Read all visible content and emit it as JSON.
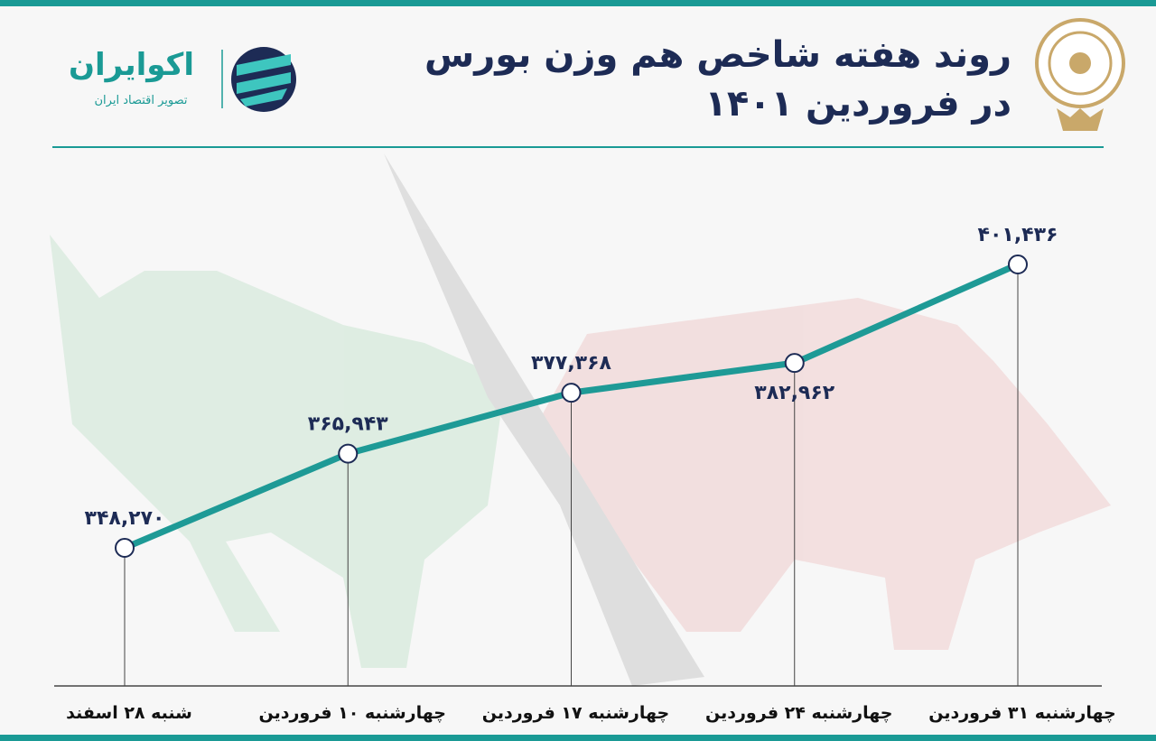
{
  "chart_data": {
    "type": "line",
    "title": "روند هفته شاخص هم وزن بورس",
    "subtitle": "در فروردین ۱۴۰۱",
    "brand": "اکوایران",
    "brand_tagline": "تصویر اقتصاد ایران",
    "categories": [
      "شنبه ۲۸ اسفند",
      "چهارشنبه ۱۰ فروردین",
      "چهارشنبه ۱۷ فروردین",
      "چهارشنبه ۲۴ فروردین",
      "چهارشنبه ۳۱ فروردین"
    ],
    "values": [
      348270,
      365943,
      377368,
      382962,
      401436
    ],
    "value_labels": [
      "۳۴۸,۲۷۰",
      "۳۶۵,۹۴۳",
      "۳۷۷,۳۶۸",
      "۳۸۲,۹۶۲",
      "۴۰۱,۴۳۶"
    ],
    "color": "#1e9a96"
  }
}
